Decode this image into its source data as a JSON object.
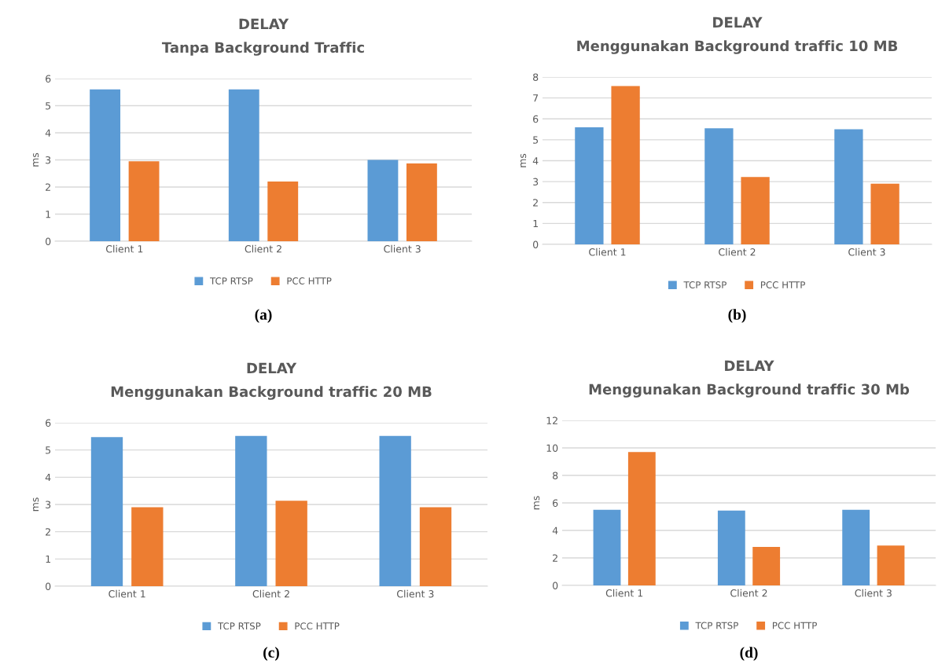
{
  "chart_data": [
    {
      "type": "bar",
      "title": "DELAY",
      "subtitle": "Tanpa Background Traffic",
      "ylabel": "ms",
      "categories": [
        "Client 1",
        "Client 2",
        "Client 3"
      ],
      "series": [
        {
          "name": "TCP RTSP",
          "color": "#5b9bd5",
          "values": [
            5.6,
            5.6,
            3.0
          ]
        },
        {
          "name": "PCC HTTP",
          "color": "#ed7d31",
          "values": [
            2.95,
            2.2,
            2.87
          ]
        }
      ],
      "ylim": [
        0,
        6
      ],
      "yticks": [
        0,
        1,
        2,
        3,
        4,
        5,
        6
      ],
      "grid": "y",
      "legend": "bottom",
      "annotations": [
        "(a)"
      ]
    },
    {
      "type": "bar",
      "title": "DELAY",
      "subtitle": "Menggunakan Background traffic 10 MB",
      "ylabel": "ms",
      "categories": [
        "Client 1",
        "Client 2",
        "Client 3"
      ],
      "series": [
        {
          "name": "TCP RTSP",
          "color": "#5b9bd5",
          "values": [
            5.6,
            5.55,
            5.5
          ]
        },
        {
          "name": "PCC HTTP",
          "color": "#ed7d31",
          "values": [
            7.57,
            3.22,
            2.9
          ]
        }
      ],
      "ylim": [
        0,
        8
      ],
      "yticks": [
        0,
        1,
        2,
        3,
        4,
        5,
        6,
        7,
        8
      ],
      "grid": "y",
      "legend": "bottom",
      "annotations": [
        "(b)"
      ]
    },
    {
      "type": "bar",
      "title": "DELAY",
      "subtitle": "Menggunakan Background traffic 20 MB",
      "ylabel": "ms",
      "categories": [
        "Client 1",
        "Client 2",
        "Client 3"
      ],
      "series": [
        {
          "name": "TCP RTSP",
          "color": "#5b9bd5",
          "values": [
            5.47,
            5.52,
            5.52
          ]
        },
        {
          "name": "PCC HTTP",
          "color": "#ed7d31",
          "values": [
            2.9,
            3.14,
            2.9
          ]
        }
      ],
      "ylim": [
        0,
        6
      ],
      "yticks": [
        0,
        1,
        2,
        3,
        4,
        5,
        6
      ],
      "grid": "y",
      "legend": "bottom",
      "annotations": [
        "(c)"
      ]
    },
    {
      "type": "bar",
      "title": "DELAY",
      "subtitle": "Menggunakan Background traffic 30 Mb",
      "ylabel": "ms",
      "categories": [
        "Client 1",
        "Client 2",
        "Client 3"
      ],
      "series": [
        {
          "name": "TCP RTSP",
          "color": "#5b9bd5",
          "values": [
            5.5,
            5.45,
            5.5
          ]
        },
        {
          "name": "PCC HTTP",
          "color": "#ed7d31",
          "values": [
            9.7,
            2.8,
            2.9
          ]
        }
      ],
      "ylim": [
        0,
        12
      ],
      "yticks": [
        0,
        2,
        4,
        6,
        8,
        10,
        12
      ],
      "grid": "y",
      "legend": "bottom",
      "annotations": [
        "(d)"
      ]
    }
  ]
}
